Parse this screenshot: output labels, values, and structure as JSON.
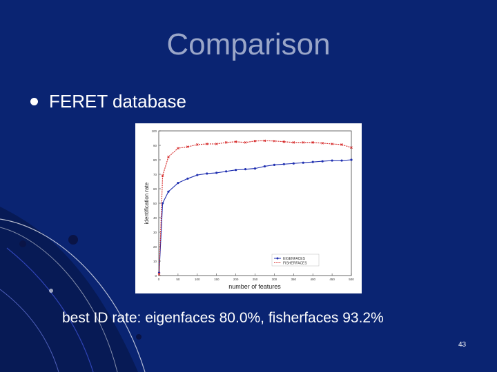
{
  "slide": {
    "title": "Comparison",
    "bullet": "FERET database",
    "caption": "best ID rate: eigenfaces 80.0%, fisherfaces 93.2%",
    "page_number": "43"
  },
  "colors": {
    "background": "#0a2472",
    "title": "#9aa6c8",
    "text": "#ffffff",
    "eigen": "#1f2fb0",
    "fisher": "#d42020"
  },
  "chart_data": {
    "type": "line",
    "xlabel": "number of features",
    "ylabel": "identification rate",
    "xlim": [
      0,
      500
    ],
    "ylim": [
      0,
      100
    ],
    "x_ticks": [
      "0",
      "50",
      "100",
      "150",
      "200",
      "250",
      "300",
      "350",
      "400",
      "450",
      "500"
    ],
    "y_ticks": [
      "0",
      "10",
      "20",
      "30",
      "40",
      "50",
      "60",
      "70",
      "80",
      "90",
      "100"
    ],
    "grid": false,
    "legend_position": "bottom-right",
    "x": [
      1,
      10,
      25,
      50,
      75,
      100,
      125,
      150,
      175,
      200,
      225,
      250,
      275,
      300,
      325,
      350,
      375,
      400,
      425,
      450,
      475,
      500
    ],
    "series": [
      {
        "name": "EIGENFACES",
        "color": "#1f2fb0",
        "marker": "circle",
        "values": [
          2,
          50,
          58,
          64,
          67,
          69.5,
          70.5,
          71,
          72,
          73,
          73.5,
          74,
          75.5,
          76.5,
          77,
          77.5,
          78,
          78.5,
          79,
          79.5,
          79.5,
          80
        ]
      },
      {
        "name": "FISHERFACES",
        "color": "#d42020",
        "marker": "x",
        "values": [
          1,
          69,
          82,
          88,
          89,
          90.5,
          91,
          91,
          92,
          92.5,
          92,
          93,
          93.2,
          93,
          92.5,
          92,
          92,
          92,
          91.5,
          91,
          90.5,
          88.5
        ]
      }
    ]
  }
}
